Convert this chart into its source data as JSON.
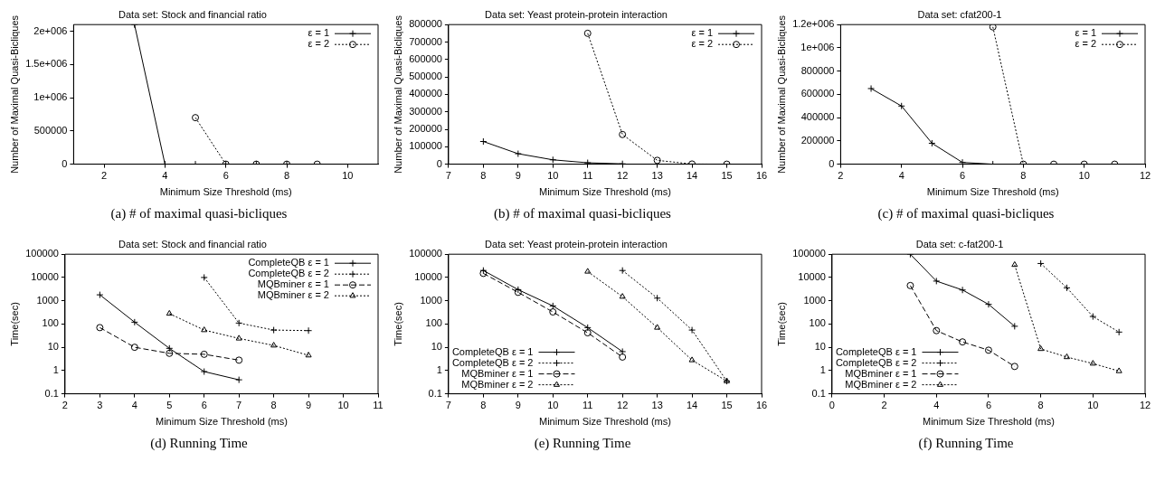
{
  "chart_data": [
    {
      "type": "line",
      "title": "Data set: Stock and financial ratio",
      "xlabel": "Minimum Size Threshold (ms)",
      "ylabel": "Number of Maximal Quasi-Bicliques",
      "annotations": [
        "(a) # of maximal quasi-bicliques"
      ],
      "xlim": [
        1,
        11
      ],
      "xticks": [
        2,
        4,
        6,
        8,
        10
      ],
      "ylim": [
        0,
        2100000
      ],
      "yticks": [
        0,
        500000,
        {
          "value": 1000000,
          "label": "1e+006"
        },
        {
          "value": 1500000,
          "label": "1.5e+006"
        },
        {
          "value": 2000000,
          "label": "2e+006"
        }
      ],
      "grid": false,
      "legend": "top right",
      "series": [
        {
          "name": "ε = 1",
          "color": "#000000",
          "marker": "cross",
          "line_style": "solid",
          "x": [
            3,
            4,
            5,
            6,
            7,
            8
          ],
          "values": [
            2100000,
            0,
            0,
            0,
            0,
            0
          ]
        },
        {
          "name": "ε = 2",
          "color": "#000000",
          "marker": "circle",
          "line_style": "dotted",
          "x": [
            5,
            6,
            7,
            8,
            9
          ],
          "values": [
            700000,
            0,
            0,
            0,
            0
          ]
        }
      ]
    },
    {
      "type": "line",
      "title": "Data set: Yeast protein-protein interaction",
      "xlabel": "Minimum Size Threshold (ms)",
      "ylabel": "Number of Maximal Quasi-Bicliques",
      "annotations": [
        "(b) # of maximal quasi-bicliques"
      ],
      "xlim": [
        7,
        16
      ],
      "xticks": [
        7,
        8,
        9,
        10,
        11,
        12,
        13,
        14,
        15,
        16
      ],
      "ylim": [
        0,
        800000
      ],
      "yticks": [
        0,
        100000,
        200000,
        300000,
        400000,
        500000,
        600000,
        700000,
        800000
      ],
      "grid": false,
      "legend": "top right",
      "series": [
        {
          "name": "ε = 1",
          "color": "#000000",
          "marker": "cross",
          "line_style": "solid",
          "x": [
            8,
            9,
            10,
            11,
            12
          ],
          "values": [
            130000,
            60000,
            25000,
            8000,
            2000
          ]
        },
        {
          "name": "ε = 2",
          "color": "#000000",
          "marker": "circle",
          "line_style": "dotted",
          "x": [
            11,
            12,
            13,
            14,
            15
          ],
          "values": [
            750000,
            170000,
            22000,
            1000,
            0
          ]
        }
      ]
    },
    {
      "type": "line",
      "title": "Data set: cfat200-1",
      "xlabel": "Minimum Size Threshold (ms)",
      "ylabel": "Number of Maximal Quasi-Bicliques",
      "annotations": [
        "(c) # of maximal quasi-bicliques"
      ],
      "xlim": [
        2,
        12
      ],
      "xticks": [
        2,
        4,
        6,
        8,
        10,
        12
      ],
      "ylim": [
        0,
        1200000
      ],
      "yticks": [
        0,
        200000,
        400000,
        600000,
        800000,
        {
          "value": 1000000,
          "label": "1e+006"
        },
        {
          "value": 1200000,
          "label": "1.2e+006"
        }
      ],
      "grid": false,
      "legend": "top right",
      "series": [
        {
          "name": "ε = 1",
          "color": "#000000",
          "marker": "cross",
          "line_style": "solid",
          "x": [
            3,
            4,
            5,
            6,
            7
          ],
          "values": [
            650000,
            500000,
            180000,
            15000,
            0
          ]
        },
        {
          "name": "ε = 2",
          "color": "#000000",
          "marker": "circle",
          "line_style": "dotted",
          "x": [
            7,
            8,
            9,
            10,
            11
          ],
          "values": [
            1180000,
            0,
            0,
            0,
            0
          ]
        }
      ]
    },
    {
      "type": "line",
      "title": "Data set: Stock and financial ratio",
      "xlabel": "Minimum Size Threshold (ms)",
      "ylabel": "Time(sec)",
      "annotations": [
        "(d) Running Time"
      ],
      "log": "y",
      "xlim": [
        2,
        11
      ],
      "xticks": [
        2,
        3,
        4,
        5,
        6,
        7,
        8,
        9,
        10,
        11
      ],
      "ylim": [
        0.1,
        100000
      ],
      "yticks": [
        0.1,
        1,
        10,
        100,
        1000,
        10000,
        100000
      ],
      "grid": false,
      "legend": "top right",
      "series": [
        {
          "name": "CompleteQB ε = 1",
          "color": "#000000",
          "marker": "cross",
          "line_style": "solid",
          "x": [
            3,
            4,
            5,
            6,
            7
          ],
          "values": [
            1800,
            120,
            9,
            0.9,
            0.4
          ]
        },
        {
          "name": "CompleteQB ε = 2",
          "color": "#000000",
          "marker": "cross",
          "line_style": "dotted",
          "x": [
            6,
            7,
            8,
            9
          ],
          "values": [
            10000,
            110,
            55,
            52
          ]
        },
        {
          "name": "MQBminer ε = 1",
          "color": "#000000",
          "marker": "circle",
          "line_style": "dashed",
          "x": [
            3,
            4,
            5,
            6,
            7
          ],
          "values": [
            70,
            10,
            5.5,
            5,
            2.8
          ]
        },
        {
          "name": "MQBminer ε = 2",
          "color": "#000000",
          "marker": "triangle",
          "line_style": "dotted",
          "x": [
            5,
            6,
            7,
            8,
            9
          ],
          "values": [
            280,
            55,
            24,
            12,
            4.5
          ]
        }
      ]
    },
    {
      "type": "line",
      "title": "Data set: Yeast protein-protein interaction",
      "xlabel": "Minimum Size Threshold (ms)",
      "ylabel": "Time(sec)",
      "annotations": [
        "(e) Running Time"
      ],
      "log": "y",
      "xlim": [
        7,
        16
      ],
      "xticks": [
        7,
        8,
        9,
        10,
        11,
        12,
        13,
        14,
        15,
        16
      ],
      "ylim": [
        0.1,
        100000
      ],
      "yticks": [
        0.1,
        1,
        10,
        100,
        1000,
        10000,
        100000
      ],
      "grid": false,
      "legend": "bottom left",
      "series": [
        {
          "name": "CompleteQB ε = 1",
          "color": "#000000",
          "marker": "cross",
          "line_style": "solid",
          "x": [
            8,
            9,
            10,
            11,
            12
          ],
          "values": [
            20000,
            3000,
            600,
            70,
            6.5
          ]
        },
        {
          "name": "CompleteQB ε = 2",
          "color": "#000000",
          "marker": "cross",
          "line_style": "dotted",
          "x": [
            12,
            13,
            14,
            15
          ],
          "values": [
            20000,
            1300,
            55,
            0.35
          ]
        },
        {
          "name": "MQBminer ε = 1",
          "color": "#000000",
          "marker": "circle",
          "line_style": "dashed",
          "x": [
            8,
            9,
            10,
            11,
            12
          ],
          "values": [
            15000,
            2300,
            330,
            42,
            3.8
          ]
        },
        {
          "name": "MQBminer ε = 2",
          "color": "#000000",
          "marker": "triangle",
          "line_style": "dotted",
          "x": [
            11,
            12,
            13,
            14,
            15
          ],
          "values": [
            18000,
            1500,
            70,
            2.8,
            0.35
          ]
        }
      ]
    },
    {
      "type": "line",
      "title": "Data set: c-fat200-1",
      "xlabel": "Minimum Size Threshold (ms)",
      "ylabel": "Time(sec)",
      "annotations": [
        "(f) Running Time"
      ],
      "log": "y",
      "xlim": [
        0,
        12
      ],
      "xticks": [
        0,
        2,
        4,
        6,
        8,
        10,
        12
      ],
      "ylim": [
        0.1,
        100000
      ],
      "yticks": [
        0.1,
        1,
        10,
        100,
        1000,
        10000,
        100000
      ],
      "grid": false,
      "legend": "bottom left",
      "series": [
        {
          "name": "CompleteQB ε = 1",
          "color": "#000000",
          "marker": "cross",
          "line_style": "solid",
          "x": [
            3,
            4,
            5,
            6,
            7
          ],
          "values": [
            100000,
            7000,
            2900,
            700,
            80
          ]
        },
        {
          "name": "CompleteQB ε = 2",
          "color": "#000000",
          "marker": "cross",
          "line_style": "dotted",
          "x": [
            8,
            9,
            10,
            11
          ],
          "values": [
            40000,
            3600,
            210,
            45
          ]
        },
        {
          "name": "MQBminer ε = 1",
          "color": "#000000",
          "marker": "circle",
          "line_style": "dashed",
          "x": [
            3,
            4,
            5,
            6,
            7
          ],
          "values": [
            4500,
            52,
            17,
            7.5,
            1.5
          ]
        },
        {
          "name": "MQBminer ε = 2",
          "color": "#000000",
          "marker": "triangle",
          "line_style": "dotted",
          "x": [
            7,
            8,
            9,
            10,
            11
          ],
          "values": [
            35000,
            8.5,
            3.8,
            2,
            0.95
          ]
        }
      ]
    }
  ]
}
